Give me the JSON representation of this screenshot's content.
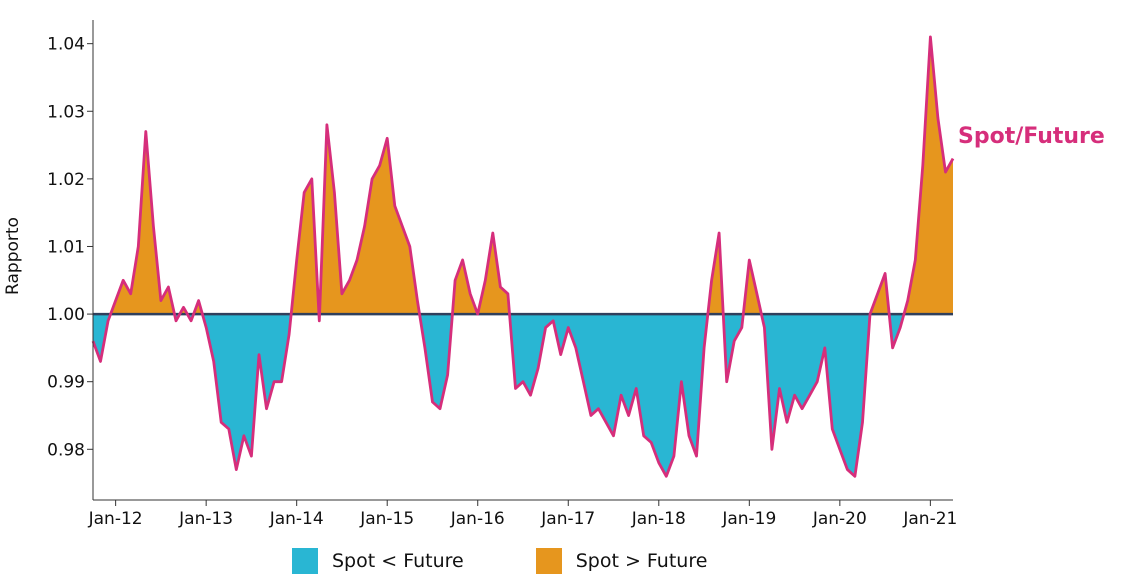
{
  "chart_data": {
    "type": "area",
    "title": "",
    "xlabel": "",
    "ylabel": "Rapporto",
    "x_ticks": [
      "Jan-12",
      "Jan-13",
      "Jan-14",
      "Jan-15",
      "Jan-16",
      "Jan-17",
      "Jan-18",
      "Jan-19",
      "Jan-20",
      "Jan-21"
    ],
    "y_ticks": [
      "0.98",
      "0.99",
      "1.00",
      "1.01",
      "1.02",
      "1.03",
      "1.04"
    ],
    "ylim": [
      0.9725,
      1.0435
    ],
    "xlim": [
      "2011-10",
      "2021-04"
    ],
    "baseline": 1.0,
    "series_label": "Spot/Future",
    "colors": {
      "line": "#d62e7b",
      "below": "#29b6d3",
      "above": "#e6961e",
      "baseline": "#2f3f5c"
    },
    "legend": [
      {
        "label": "Spot < Future",
        "color": "#29b6d3"
      },
      {
        "label": "Spot > Future",
        "color": "#e6961e"
      }
    ],
    "series": [
      {
        "name": "Spot/Future",
        "points": [
          [
            "2011-10",
            0.996
          ],
          [
            "2011-11",
            0.993
          ],
          [
            "2011-12",
            0.999
          ],
          [
            "2012-01",
            1.002
          ],
          [
            "2012-02",
            1.005
          ],
          [
            "2012-03",
            1.003
          ],
          [
            "2012-04",
            1.01
          ],
          [
            "2012-05",
            1.027
          ],
          [
            "2012-06",
            1.013
          ],
          [
            "2012-07",
            1.002
          ],
          [
            "2012-08",
            1.004
          ],
          [
            "2012-09",
            0.999
          ],
          [
            "2012-10",
            1.001
          ],
          [
            "2012-11",
            0.999
          ],
          [
            "2012-12",
            1.002
          ],
          [
            "2013-01",
            0.998
          ],
          [
            "2013-02",
            0.993
          ],
          [
            "2013-03",
            0.984
          ],
          [
            "2013-04",
            0.983
          ],
          [
            "2013-05",
            0.977
          ],
          [
            "2013-06",
            0.982
          ],
          [
            "2013-07",
            0.979
          ],
          [
            "2013-08",
            0.994
          ],
          [
            "2013-09",
            0.986
          ],
          [
            "2013-10",
            0.99
          ],
          [
            "2013-11",
            0.99
          ],
          [
            "2013-12",
            0.997
          ],
          [
            "2014-01",
            1.008
          ],
          [
            "2014-02",
            1.018
          ],
          [
            "2014-03",
            1.02
          ],
          [
            "2014-04",
            0.999
          ],
          [
            "2014-05",
            1.028
          ],
          [
            "2014-06",
            1.018
          ],
          [
            "2014-07",
            1.003
          ],
          [
            "2014-08",
            1.005
          ],
          [
            "2014-09",
            1.008
          ],
          [
            "2014-10",
            1.013
          ],
          [
            "2014-11",
            1.02
          ],
          [
            "2014-12",
            1.022
          ],
          [
            "2015-01",
            1.026
          ],
          [
            "2015-02",
            1.016
          ],
          [
            "2015-03",
            1.013
          ],
          [
            "2015-04",
            1.01
          ],
          [
            "2015-05",
            1.002
          ],
          [
            "2015-06",
            0.995
          ],
          [
            "2015-07",
            0.987
          ],
          [
            "2015-08",
            0.986
          ],
          [
            "2015-09",
            0.991
          ],
          [
            "2015-10",
            1.005
          ],
          [
            "2015-11",
            1.008
          ],
          [
            "2015-12",
            1.003
          ],
          [
            "2016-01",
            1.0
          ],
          [
            "2016-02",
            1.005
          ],
          [
            "2016-03",
            1.012
          ],
          [
            "2016-04",
            1.004
          ],
          [
            "2016-05",
            1.003
          ],
          [
            "2016-06",
            0.989
          ],
          [
            "2016-07",
            0.99
          ],
          [
            "2016-08",
            0.988
          ],
          [
            "2016-09",
            0.992
          ],
          [
            "2016-10",
            0.998
          ],
          [
            "2016-11",
            0.999
          ],
          [
            "2016-12",
            0.994
          ],
          [
            "2017-01",
            0.998
          ],
          [
            "2017-02",
            0.995
          ],
          [
            "2017-03",
            0.99
          ],
          [
            "2017-04",
            0.985
          ],
          [
            "2017-05",
            0.986
          ],
          [
            "2017-06",
            0.984
          ],
          [
            "2017-07",
            0.982
          ],
          [
            "2017-08",
            0.988
          ],
          [
            "2017-09",
            0.985
          ],
          [
            "2017-10",
            0.989
          ],
          [
            "2017-11",
            0.982
          ],
          [
            "2017-12",
            0.981
          ],
          [
            "2018-01",
            0.978
          ],
          [
            "2018-02",
            0.976
          ],
          [
            "2018-03",
            0.979
          ],
          [
            "2018-04",
            0.99
          ],
          [
            "2018-05",
            0.982
          ],
          [
            "2018-06",
            0.979
          ],
          [
            "2018-07",
            0.995
          ],
          [
            "2018-08",
            1.005
          ],
          [
            "2018-09",
            1.012
          ],
          [
            "2018-10",
            0.99
          ],
          [
            "2018-11",
            0.996
          ],
          [
            "2018-12",
            0.998
          ],
          [
            "2019-01",
            1.008
          ],
          [
            "2019-02",
            1.003
          ],
          [
            "2019-03",
            0.998
          ],
          [
            "2019-04",
            0.98
          ],
          [
            "2019-05",
            0.989
          ],
          [
            "2019-06",
            0.984
          ],
          [
            "2019-07",
            0.988
          ],
          [
            "2019-08",
            0.986
          ],
          [
            "2019-09",
            0.988
          ],
          [
            "2019-10",
            0.99
          ],
          [
            "2019-11",
            0.995
          ],
          [
            "2019-12",
            0.983
          ],
          [
            "2020-01",
            0.98
          ],
          [
            "2020-02",
            0.977
          ],
          [
            "2020-03",
            0.976
          ],
          [
            "2020-04",
            0.984
          ],
          [
            "2020-05",
            1.0
          ],
          [
            "2020-06",
            1.003
          ],
          [
            "2020-07",
            1.006
          ],
          [
            "2020-08",
            0.995
          ],
          [
            "2020-09",
            0.998
          ],
          [
            "2020-10",
            1.002
          ],
          [
            "2020-11",
            1.008
          ],
          [
            "2020-12",
            1.022
          ],
          [
            "2021-01",
            1.041
          ],
          [
            "2021-02",
            1.029
          ],
          [
            "2021-03",
            1.021
          ],
          [
            "2021-04",
            1.023
          ]
        ]
      }
    ]
  }
}
